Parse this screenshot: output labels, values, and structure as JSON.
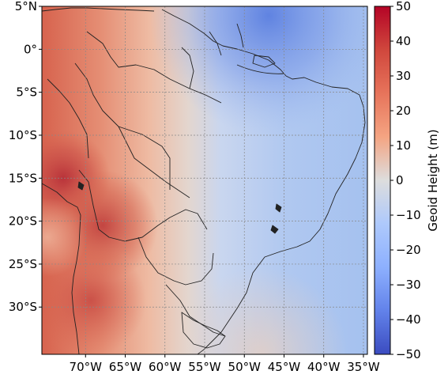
{
  "map": {
    "lon_range": [
      -75.5,
      -34.5
    ],
    "lat_range": [
      -35.5,
      5
    ],
    "lat_ticks": [
      {
        "value": 5,
        "label": "5°N"
      },
      {
        "value": 0,
        "label": "0°"
      },
      {
        "value": -5,
        "label": "5°S"
      },
      {
        "value": -10,
        "label": "10°S"
      },
      {
        "value": -15,
        "label": "15°S"
      },
      {
        "value": -20,
        "label": "20°S"
      },
      {
        "value": -25,
        "label": "25°S"
      },
      {
        "value": -30,
        "label": "30°S"
      }
    ],
    "lon_ticks": [
      {
        "value": -70,
        "label": "70°W"
      },
      {
        "value": -65,
        "label": "65°W"
      },
      {
        "value": -60,
        "label": "60°W"
      },
      {
        "value": -55,
        "label": "55°W"
      },
      {
        "value": -50,
        "label": "50°W"
      },
      {
        "value": -45,
        "label": "45°W"
      },
      {
        "value": -40,
        "label": "40°W"
      },
      {
        "value": -35,
        "label": "35°W"
      }
    ],
    "grid": true
  },
  "colorbar": {
    "label": "Geoid Height (m)",
    "min": -50,
    "max": 50,
    "ticks": [
      "50",
      "40",
      "30",
      "20",
      "10",
      "0",
      "−10",
      "−20",
      "−30",
      "−40",
      "−50"
    ],
    "colormap": "coolwarm",
    "colors": {
      "low": "#3b4cc0",
      "mid": "#dddddd",
      "high": "#b40426"
    }
  }
}
